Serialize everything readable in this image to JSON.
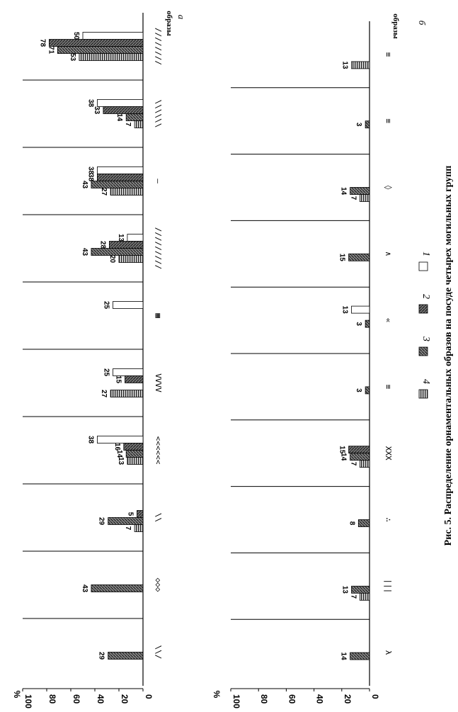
{
  "caption": "Рис. 5. Распределение орнаментальных образов на посуде четырех могильных групп",
  "percent_sign": "%",
  "x_label": "образы",
  "legend": [
    {
      "key": "1",
      "label": "1"
    },
    {
      "key": "2",
      "label": "2"
    },
    {
      "key": "3",
      "label": "3"
    },
    {
      "key": "4",
      "label": "4"
    }
  ],
  "chart_data": [
    {
      "type": "bar",
      "panel": "а",
      "ylabel": "%",
      "xlabel": "образы",
      "ylim": [
        0,
        100
      ],
      "yticks": [
        0,
        20,
        40,
        60,
        80,
        100
      ],
      "categories": [
        "////////",
        "\\\\\\\\\\\\",
        "—",
        "/////////",
        "▦",
        "VVVV",
        "<<<<<<",
        "\\\\",
        "◇◇◇",
        "\\\\/"
      ],
      "series": [
        {
          "name": "1",
          "values": [
            50,
            38,
            38,
            13,
            25,
            25,
            38,
            0,
            0,
            0
          ]
        },
        {
          "name": "2",
          "values": [
            78,
            33,
            38,
            28,
            0,
            15,
            16,
            5,
            0,
            0
          ]
        },
        {
          "name": "3",
          "values": [
            71,
            14,
            43,
            43,
            0,
            0,
            14,
            29,
            43,
            29
          ]
        },
        {
          "name": "4",
          "values": [
            53,
            7,
            27,
            20,
            0,
            27,
            13,
            7,
            0,
            0
          ]
        }
      ]
    },
    {
      "type": "bar",
      "panel": "б",
      "ylabel": "%",
      "xlabel": "образы",
      "ylim": [
        0,
        100
      ],
      "yticks": [
        0,
        20,
        40,
        60,
        80,
        100
      ],
      "categories": [
        "≡",
        "≡",
        "◊",
        "∧",
        "«",
        "≡",
        "XXX",
        "∴",
        "|||",
        "λ"
      ],
      "series": [
        {
          "name": "1",
          "values": [
            0,
            0,
            0,
            0,
            13,
            0,
            0,
            0,
            0,
            0
          ]
        },
        {
          "name": "2",
          "values": [
            0,
            0,
            0,
            0,
            0,
            0,
            15,
            0,
            0,
            0
          ]
        },
        {
          "name": "3",
          "values": [
            0,
            3,
            14,
            15,
            3,
            3,
            14,
            8,
            13,
            14
          ]
        },
        {
          "name": "4",
          "values": [
            13,
            0,
            7,
            0,
            0,
            0,
            7,
            0,
            7,
            0
          ]
        }
      ]
    }
  ]
}
